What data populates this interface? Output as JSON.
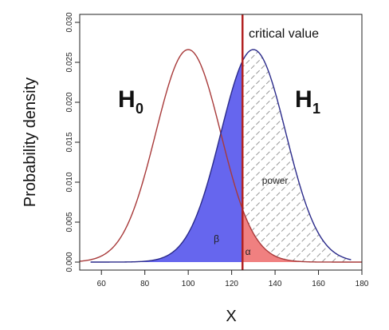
{
  "chart_data": {
    "type": "area",
    "title": "",
    "xlabel": "X",
    "ylabel": "Probability density",
    "xlim": [
      50,
      180
    ],
    "ylim": [
      -0.001,
      0.031
    ],
    "x_ticks": [
      60,
      80,
      100,
      120,
      140,
      160,
      180
    ],
    "y_ticks": [
      "0.000",
      "0.005",
      "0.010",
      "0.015",
      "0.020",
      "0.025",
      "0.030"
    ],
    "grid": false,
    "series": [
      {
        "name": "H0",
        "label_main": "H",
        "label_sub": "0",
        "mean": 100,
        "sd": 15,
        "x_range": [
          45,
          180
        ],
        "peak_density": 0.0266,
        "line_color": "#a83a3a"
      },
      {
        "name": "H1",
        "label_main": "H",
        "label_sub": "1",
        "mean": 130,
        "sd": 15,
        "x_range": [
          55,
          175
        ],
        "peak_density": 0.0266,
        "line_color": "#2a2a8a"
      }
    ],
    "critical_value": {
      "x": 125,
      "label": "critical value",
      "color": "#b22222"
    },
    "regions": [
      {
        "name": "beta",
        "label": "β",
        "label_x": 113,
        "label_y": 0.0025,
        "color": "#6666ee"
      },
      {
        "name": "alpha",
        "label": "α",
        "label_x": 127.5,
        "label_y": 0.0009,
        "color": "#f08080"
      },
      {
        "name": "power",
        "label": "power",
        "label_x": 140,
        "label_y": 0.0098,
        "hatch_color": "#999999"
      }
    ]
  }
}
